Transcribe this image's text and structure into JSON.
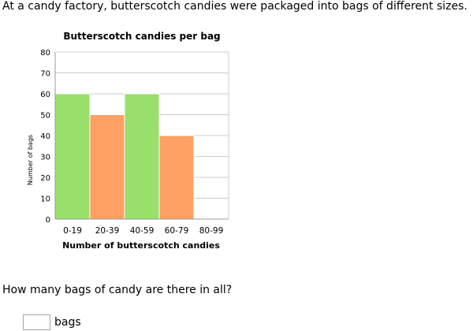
{
  "intro_text": "At a candy factory, butterscotch candies were packaged into bags of different sizes.",
  "question_text": "How many bags of candy are there in all?",
  "answer": {
    "value": "",
    "unit": "bags"
  },
  "chart_data": {
    "type": "bar",
    "title": "Butterscotch candies per bag",
    "xlabel": "Number of butterscotch candies",
    "ylabel": "Number of bags",
    "categories": [
      "0-19",
      "20-39",
      "40-59",
      "60-79",
      "80-99"
    ],
    "values": [
      60,
      50,
      60,
      40,
      0
    ],
    "ylim": [
      0,
      80
    ],
    "yticks": [
      0,
      10,
      20,
      30,
      40,
      50,
      60,
      70,
      80
    ],
    "grid": true,
    "bar_colors": [
      "#98e06a",
      "#ffa064",
      "#98e06a",
      "#ffa064",
      "#98e06a"
    ],
    "axis_color": "#999999",
    "grid_color": "#cccccc"
  }
}
